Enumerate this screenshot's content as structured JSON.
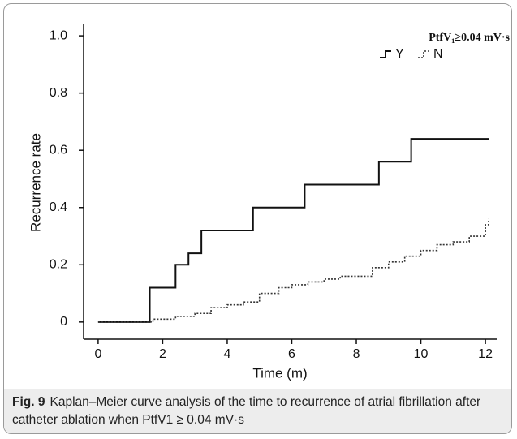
{
  "chart_data": {
    "type": "line",
    "x_label": "Time (m)",
    "y_label": "Recurrence rate",
    "legend_title": "PtfV₁≥0.04 mV·s",
    "series": [
      {
        "name": "Y",
        "color": "#111111",
        "style": "solid",
        "step": true,
        "x": [
          0,
          1.6,
          2.4,
          2.8,
          3.2,
          4.8,
          6.4,
          8.7,
          9.7,
          12.1
        ],
        "values": [
          0,
          0.12,
          0.2,
          0.24,
          0.32,
          0.4,
          0.48,
          0.56,
          0.64,
          0.64
        ]
      },
      {
        "name": "N",
        "color": "#333333",
        "style": "dotted",
        "step": true,
        "x": [
          0,
          1.7,
          2.4,
          3.0,
          3.5,
          4.0,
          4.5,
          5.0,
          5.6,
          6.0,
          6.5,
          7.0,
          7.5,
          8.0,
          8.5,
          9.0,
          9.5,
          10.0,
          10.5,
          11.0,
          11.5,
          12.0,
          12.1
        ],
        "values": [
          0,
          0.01,
          0.02,
          0.03,
          0.05,
          0.06,
          0.07,
          0.1,
          0.12,
          0.13,
          0.14,
          0.15,
          0.16,
          0.16,
          0.19,
          0.21,
          0.23,
          0.25,
          0.27,
          0.28,
          0.3,
          0.34,
          0.36
        ]
      }
    ],
    "xlim": [
      -0.45,
      12.35
    ],
    "xticks": [
      0,
      2,
      4,
      6,
      8,
      10,
      12
    ],
    "ylim": [
      -0.06,
      1.04
    ],
    "yticks": [
      0,
      0.2,
      0.4,
      0.6,
      0.8,
      {
        "value": 1,
        "label": "1.0"
      }
    ],
    "grid": false,
    "legend_position": "upper right",
    "caption_label": "Fig. 9",
    "caption": "Kaplan–Meier curve analysis of the time to recurrence of atrial fibrillation after catheter ablation when PtfV1 ≥ 0.04 mV·s"
  }
}
